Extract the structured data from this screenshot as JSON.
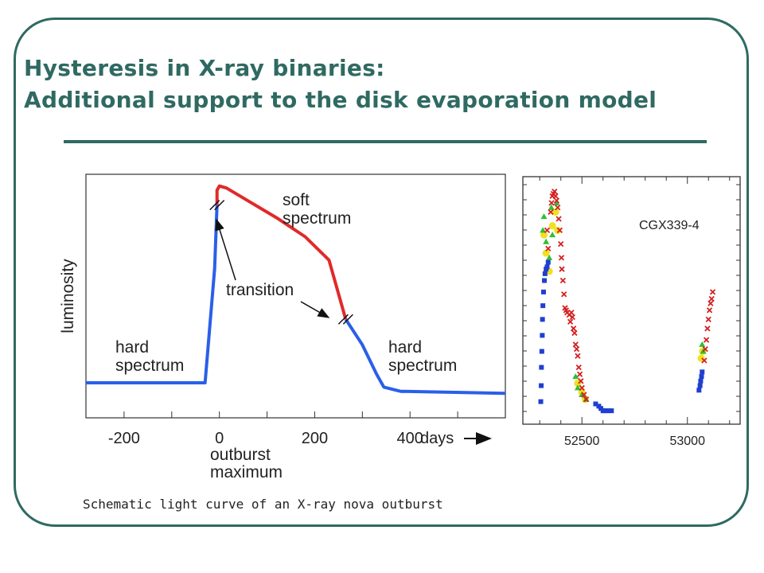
{
  "slide": {
    "title_line1": "Hysteresis in X-ray binaries:",
    "title_line2": "Additional support to the disk evaporation model",
    "caption": "Schematic light curve of an X-ray nova outburst"
  },
  "colors": {
    "accent": "#2f6a62",
    "hard": "#2a5fe8",
    "soft": "#e02a2a"
  },
  "chart_data": [
    {
      "type": "line",
      "ylabel": "luminosity",
      "xlabel": "days",
      "xticks": [
        "-200",
        "0",
        "200",
        "400"
      ],
      "xtick_values": [
        -200,
        0,
        200,
        400
      ],
      "xlim": [
        -280,
        600
      ],
      "ylim": [
        0,
        1
      ],
      "zero_annotation": "outburst maximum",
      "zero_annotation_line1": "outburst",
      "zero_annotation_line2": "maximum",
      "text_labels": {
        "hard_left_1": "hard",
        "hard_left_2": "spectrum",
        "soft_1": "soft",
        "soft_2": "spectrum",
        "transition": "transition",
        "hard_right_1": "hard",
        "hard_right_2": "spectrum"
      },
      "series": [
        {
          "state": "hard",
          "color": "#2a5fe8",
          "points": [
            [
              -280,
              0.06
            ],
            [
              -30,
              0.06
            ],
            [
              -10,
              0.6
            ],
            [
              -5,
              0.9
            ]
          ]
        },
        {
          "state": "soft",
          "color": "#e02a2a",
          "points": [
            [
              -5,
              0.9
            ],
            [
              -5,
              0.97
            ],
            [
              0,
              0.99
            ],
            [
              15,
              0.98
            ],
            [
              60,
              0.92
            ],
            [
              120,
              0.84
            ],
            [
              180,
              0.75
            ],
            [
              230,
              0.64
            ],
            [
              265,
              0.36
            ]
          ]
        },
        {
          "state": "hard",
          "color": "#2a5fe8",
          "points": [
            [
              265,
              0.36
            ],
            [
              300,
              0.24
            ],
            [
              330,
              0.1
            ],
            [
              345,
              0.04
            ],
            [
              380,
              0.02
            ],
            [
              600,
              0.01
            ]
          ]
        }
      ],
      "transitions": [
        [
          -5,
          0.9
        ],
        [
          265,
          0.36
        ]
      ]
    },
    {
      "type": "scatter",
      "annotation": "CGX339-4",
      "xticks": [
        "52500",
        "53000"
      ],
      "xtick_values": [
        52500,
        53000
      ],
      "xlim": [
        52220,
        53250
      ],
      "ylim": [
        0,
        1
      ],
      "series": [
        {
          "marker": "square",
          "color": "#1f3fd0",
          "points": [
            [
              52305,
              0.05
            ],
            [
              52307,
              0.12
            ],
            [
              52308,
              0.2
            ],
            [
              52310,
              0.27
            ],
            [
              52312,
              0.34
            ],
            [
              52313,
              0.41
            ],
            [
              52315,
              0.47
            ],
            [
              52318,
              0.53
            ],
            [
              52322,
              0.58
            ],
            [
              52325,
              0.61
            ],
            [
              52330,
              0.63
            ],
            [
              52335,
              0.64
            ],
            [
              52340,
              0.66
            ],
            [
              52565,
              0.04
            ],
            [
              52580,
              0.03
            ],
            [
              52590,
              0.02
            ],
            [
              52600,
              0.01
            ],
            [
              52610,
              0.01
            ],
            [
              52625,
              0.01
            ],
            [
              52640,
              0.01
            ],
            [
              53055,
              0.1
            ],
            [
              53060,
              0.12
            ],
            [
              53063,
              0.14
            ],
            [
              53067,
              0.16
            ],
            [
              53070,
              0.18
            ]
          ]
        },
        {
          "marker": "cross",
          "color": "#d42020",
          "points": [
            [
              52335,
              0.8
            ],
            [
              52340,
              0.72
            ],
            [
              52352,
              0.88
            ],
            [
              52356,
              0.92
            ],
            [
              52360,
              0.95
            ],
            [
              52365,
              0.96
            ],
            [
              52370,
              0.97
            ],
            [
              52375,
              0.95
            ],
            [
              52380,
              0.93
            ],
            [
              52385,
              0.9
            ],
            [
              52390,
              0.85
            ],
            [
              52395,
              0.8
            ],
            [
              52400,
              0.74
            ],
            [
              52403,
              0.68
            ],
            [
              52405,
              0.63
            ],
            [
              52410,
              0.58
            ],
            [
              52415,
              0.52
            ],
            [
              52420,
              0.46
            ],
            [
              52425,
              0.45
            ],
            [
              52430,
              0.44
            ],
            [
              52440,
              0.43
            ],
            [
              52445,
              0.4
            ],
            [
              52450,
              0.44
            ],
            [
              52455,
              0.42
            ],
            [
              52460,
              0.37
            ],
            [
              52465,
              0.35
            ],
            [
              52470,
              0.3
            ],
            [
              52475,
              0.28
            ],
            [
              52480,
              0.25
            ],
            [
              52485,
              0.2
            ],
            [
              52490,
              0.17
            ],
            [
              52495,
              0.14
            ],
            [
              52500,
              0.11
            ],
            [
              52510,
              0.08
            ],
            [
              52520,
              0.06
            ],
            [
              53080,
              0.23
            ],
            [
              53085,
              0.28
            ],
            [
              53090,
              0.32
            ],
            [
              53095,
              0.37
            ],
            [
              53100,
              0.41
            ],
            [
              53105,
              0.45
            ],
            [
              53110,
              0.48
            ],
            [
              53115,
              0.5
            ],
            [
              53120,
              0.53
            ]
          ]
        },
        {
          "marker": "triangle",
          "color": "#2fbf2f",
          "points": [
            [
              52315,
              0.8
            ],
            [
              52320,
              0.86
            ],
            [
              52330,
              0.75
            ],
            [
              52345,
              0.68
            ],
            [
              52355,
              0.9
            ],
            [
              52360,
              0.78
            ],
            [
              52380,
              0.92
            ],
            [
              52470,
              0.16
            ],
            [
              52480,
              0.11
            ],
            [
              52500,
              0.08
            ],
            [
              52520,
              0.06
            ],
            [
              53070,
              0.3
            ],
            [
              53075,
              0.27
            ]
          ]
        },
        {
          "marker": "circle",
          "color": "#f0e020",
          "points": [
            [
              52320,
              0.78
            ],
            [
              52330,
              0.7
            ],
            [
              52345,
              0.62
            ],
            [
              52360,
              0.82
            ],
            [
              52375,
              0.88
            ],
            [
              52385,
              0.8
            ],
            [
              52480,
              0.13
            ],
            [
              52500,
              0.09
            ],
            [
              52515,
              0.06
            ],
            [
              53065,
              0.24
            ],
            [
              53072,
              0.27
            ]
          ]
        }
      ]
    }
  ]
}
